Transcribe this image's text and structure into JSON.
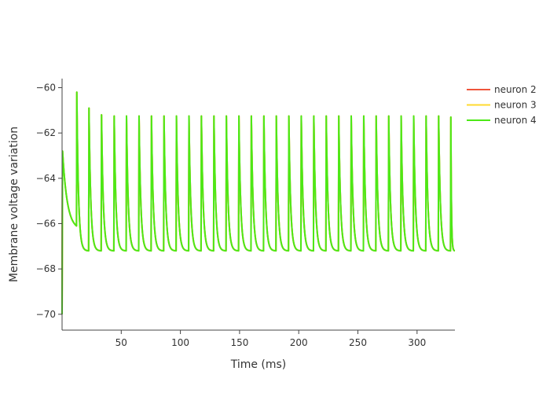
{
  "chart_data": {
    "type": "line",
    "title": "",
    "xlabel": "Time (ms)",
    "ylabel": "Membrane voltage variation",
    "xlim": [
      0,
      332
    ],
    "ylim": [
      -70.7,
      -59.6
    ],
    "x_ticks": [
      50,
      100,
      150,
      200,
      250,
      300
    ],
    "y_ticks": [
      -70,
      -68,
      -66,
      -64,
      -62,
      -60
    ],
    "y_tick_labels": [
      "−70",
      "−68",
      "−66",
      "−64",
      "−62",
      "−60"
    ],
    "grid": false,
    "legend_placement": "top-right",
    "spike_times": [
      12.2,
      22.5,
      33.1,
      43.8,
      54.2,
      64.8,
      75.3,
      85.9,
      96.4,
      107.0,
      117.5,
      128.1,
      138.6,
      149.2,
      159.7,
      170.3,
      180.8,
      191.4,
      201.9,
      212.5,
      223.0,
      233.6,
      244.1,
      254.7,
      265.2,
      275.8,
      286.3,
      296.9,
      307.4,
      318.0,
      328.3
    ],
    "spike_peaks": [
      -60.2,
      -60.9,
      -61.2,
      -61.25,
      -61.25,
      -61.25,
      -61.25,
      -61.25,
      -61.25,
      -61.25,
      -61.25,
      -61.25,
      -61.25,
      -61.25,
      -61.25,
      -61.25,
      -61.25,
      -61.25,
      -61.25,
      -61.25,
      -61.25,
      -61.25,
      -61.25,
      -61.25,
      -61.25,
      -61.25,
      -61.25,
      -61.25,
      -61.25,
      -61.25,
      -61.3
    ],
    "resting_start": -70.0,
    "first_peak": -62.8,
    "first_trough": -66.1,
    "trough_value": -67.2,
    "end_value": -67.2,
    "series": [
      {
        "name": "neuron 2",
        "color": "#ef553b"
      },
      {
        "name": "neuron 3",
        "color": "#ffd92f"
      },
      {
        "name": "neuron 4",
        "color": "#4ce817"
      }
    ]
  }
}
